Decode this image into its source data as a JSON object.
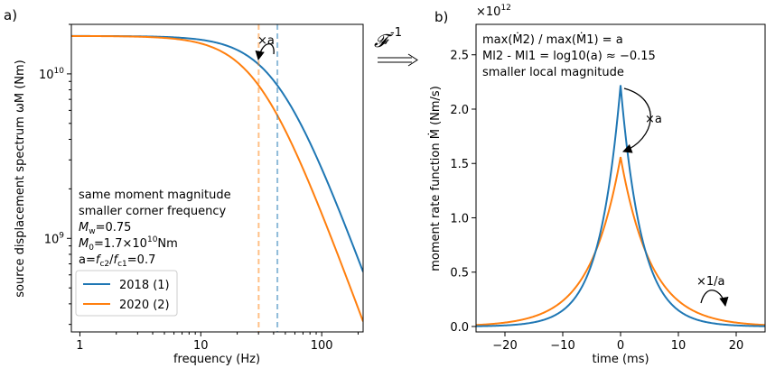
{
  "chart_data": [
    {
      "panel_label": "a)",
      "type": "line",
      "xlabel": "frequency (Hz)",
      "ylabel": "source displacement spectrum ωM (Nm)",
      "xscale": "log",
      "yscale": "log",
      "xlim": [
        0.85,
        220
      ],
      "ylim": [
        270000000.0,
        20000000000.0
      ],
      "xticks": [
        {
          "value": 1,
          "label": "1"
        },
        {
          "value": 10,
          "label": "10"
        },
        {
          "value": 100,
          "label": "100"
        }
      ],
      "yticks": [
        {
          "value": 1000000000.0,
          "label": "10",
          "exp": "9"
        },
        {
          "value": 10000000000.0,
          "label": "10",
          "exp": "10"
        }
      ],
      "model": {
        "M0": 17000000000.0,
        "fc1": 43,
        "fc2": 30.1
      },
      "series": [
        {
          "name": "2018 (1)",
          "color": "#1f77b4",
          "corner_frequency": 43
        },
        {
          "name": "2020 (2)",
          "color": "#ff7f0e",
          "corner_frequency": 30.1
        }
      ],
      "annotations": {
        "arrow_label": "×a",
        "info_lines": [
          "same moment magnitude",
          "smaller corner frequency",
          "M_w=0.75",
          "M_0=1.7×10^10Nm",
          "a=f_c2/f_c1=0.7"
        ]
      },
      "legend": {
        "position": "bottom-left",
        "entries": [
          "2018 (1)",
          "2020 (2)"
        ]
      },
      "grid": false
    },
    {
      "panel_label": "b)",
      "type": "line",
      "xlabel": "time (ms)",
      "ylabel": "moment rate function Ṁ (Nm/s)",
      "offset_label": "×10",
      "offset_exp": "12",
      "xlim": [
        -25,
        25
      ],
      "ylim": [
        -0.05,
        2.78
      ],
      "xticks": [
        -20,
        -10,
        0,
        10,
        20
      ],
      "yticks": [
        0.0,
        0.5,
        1.0,
        1.5,
        2.0,
        2.5
      ],
      "series": [
        {
          "name": "2018 (1)",
          "color": "#1f77b4",
          "peak": 2.22,
          "decay_ms": 3.7
        },
        {
          "name": "2020 (2)",
          "color": "#ff7f0e",
          "peak": 1.56,
          "decay_ms": 5.3
        }
      ],
      "annotations": {
        "text_lines": [
          "max(Ṁ2) / max(Ṁ1) = a",
          "Ml2 - Ml1 = log10(a) ≈ −0.15",
          "smaller local magnitude"
        ],
        "peak_arrow_label": "×a",
        "tail_arrow_label": "×1/a"
      },
      "grid": false
    }
  ],
  "transform_symbol": "𝓕",
  "transform_exp": "-1"
}
